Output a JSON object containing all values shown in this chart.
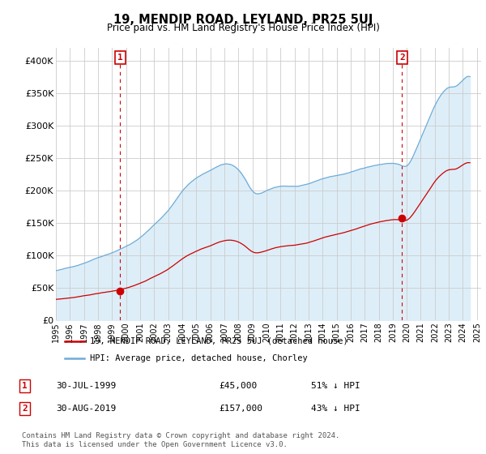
{
  "title": "19, MENDIP ROAD, LEYLAND, PR25 5UJ",
  "subtitle": "Price paid vs. HM Land Registry's House Price Index (HPI)",
  "ylim": [
    0,
    420000
  ],
  "yticks": [
    0,
    50000,
    100000,
    150000,
    200000,
    250000,
    300000,
    350000,
    400000
  ],
  "ytick_labels": [
    "£0",
    "£50K",
    "£100K",
    "£150K",
    "£200K",
    "£250K",
    "£300K",
    "£350K",
    "£400K"
  ],
  "hpi_color": "#6dacd8",
  "hpi_fill_color": "#ddeef8",
  "price_color": "#cc0000",
  "annotation_box_color": "#cc0000",
  "background_color": "#ffffff",
  "grid_color": "#cccccc",
  "legend_label_price": "19, MENDIP ROAD, LEYLAND, PR25 5UJ (detached house)",
  "legend_label_hpi": "HPI: Average price, detached house, Chorley",
  "note1_date": "30-JUL-1999",
  "note1_price": "£45,000",
  "note1_hpi": "51% ↓ HPI",
  "note2_date": "30-AUG-2019",
  "note2_price": "£157,000",
  "note2_hpi": "43% ↓ HPI",
  "footer": "Contains HM Land Registry data © Crown copyright and database right 2024.\nThis data is licensed under the Open Government Licence v3.0.",
  "sale1_year": 1999.58,
  "sale1_price": 45000,
  "sale2_year": 2019.67,
  "sale2_price": 157000,
  "xlim_left": 1995.0,
  "xlim_right": 2025.3
}
